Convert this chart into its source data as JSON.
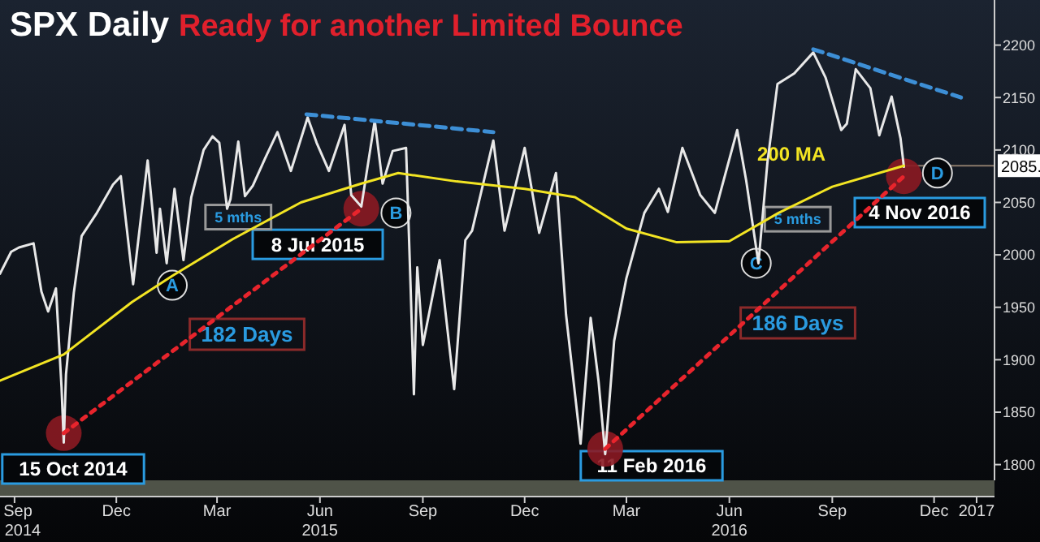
{
  "chart_data": {
    "type": "line",
    "title": "SPX Daily",
    "subtitle": "Ready for another Limited Bounce",
    "xlim": [
      "2014-08-19",
      "2017-01-24"
    ],
    "ylim": [
      1785,
      2243
    ],
    "yticks": [
      1800,
      1850,
      1900,
      1950,
      2000,
      2050,
      2100,
      2150,
      2200
    ],
    "xticks": [
      {
        "value": "2014-09-01",
        "label": "Sep\n2014"
      },
      {
        "value": "2014-12-01",
        "label": "Dec"
      },
      {
        "value": "2015-03-01",
        "label": "Mar"
      },
      {
        "value": "2015-06-01",
        "label": "Jun\n2015"
      },
      {
        "value": "2015-09-01",
        "label": "Sep"
      },
      {
        "value": "2015-12-01",
        "label": "Dec"
      },
      {
        "value": "2016-03-01",
        "label": "Mar"
      },
      {
        "value": "2016-06-01",
        "label": "Jun\n2016"
      },
      {
        "value": "2016-09-01",
        "label": "Sep"
      },
      {
        "value": "2016-12-01",
        "label": "Dec"
      },
      {
        "value": "2017-01-08",
        "label": "2017"
      }
    ],
    "grid": false,
    "series": [
      {
        "color": "#e8e8e8",
        "line_style": "solid",
        "x": [
          "2014-08-19",
          "2014-08-29",
          "2014-09-05",
          "2014-09-18",
          "2014-09-25",
          "2014-10-01",
          "2014-10-08",
          "2014-10-13",
          "2014-10-15",
          "2014-10-17",
          "2014-10-24",
          "2014-10-31",
          "2014-11-13",
          "2014-11-28",
          "2014-12-05",
          "2014-12-16",
          "2014-12-29",
          "2015-01-06",
          "2015-01-09",
          "2015-01-15",
          "2015-01-22",
          "2015-01-30",
          "2015-02-06",
          "2015-02-17",
          "2015-02-25",
          "2015-03-03",
          "2015-03-10",
          "2015-03-13",
          "2015-03-20",
          "2015-03-26",
          "2015-04-02",
          "2015-04-13",
          "2015-04-24",
          "2015-05-06",
          "2015-05-21",
          "2015-05-29",
          "2015-06-09",
          "2015-06-23",
          "2015-06-29",
          "2015-07-08",
          "2015-07-20",
          "2015-07-27",
          "2015-08-05",
          "2015-08-17",
          "2015-08-21",
          "2015-08-24",
          "2015-08-27",
          "2015-09-01",
          "2015-09-16",
          "2015-09-29",
          "2015-10-09",
          "2015-10-15",
          "2015-11-03",
          "2015-11-13",
          "2015-12-01",
          "2015-12-14",
          "2015-12-29",
          "2016-01-07",
          "2016-01-20",
          "2016-01-29",
          "2016-02-05",
          "2016-02-11",
          "2016-02-19",
          "2016-03-01",
          "2016-03-17",
          "2016-03-30",
          "2016-04-07",
          "2016-04-20",
          "2016-05-06",
          "2016-05-19",
          "2016-06-08",
          "2016-06-16",
          "2016-06-27",
          "2016-07-05",
          "2016-07-14",
          "2016-07-29",
          "2016-08-15",
          "2016-08-26",
          "2016-09-09",
          "2016-09-14",
          "2016-09-22",
          "2016-10-05",
          "2016-10-13",
          "2016-10-24",
          "2016-11-01",
          "2016-11-04"
        ],
        "values": [
          1982,
          2003,
          2007,
          2011,
          1965,
          1946,
          1968,
          1874,
          1821,
          1886,
          1964,
          2018,
          2039,
          2067,
          2075,
          1972,
          2090,
          2002,
          2044,
          1992,
          2063,
          1995,
          2055,
          2100,
          2113,
          2107,
          2044,
          2053,
          2108,
          2056,
          2066,
          2092,
          2117,
          2080,
          2131,
          2107,
          2080,
          2124,
          2057,
          2046,
          2128,
          2068,
          2099,
          2102,
          1971,
          1867,
          1988,
          1914,
          1995,
          1872,
          2014,
          2023,
          2109,
          2023,
          2102,
          2021,
          2078,
          1943,
          1820,
          1940,
          1880,
          1810,
          1918,
          1978,
          2040,
          2063,
          2041,
          2102,
          2057,
          2040,
          2119,
          2071,
          1992,
          2088,
          2163,
          2173,
          2193,
          2169,
          2119,
          2125,
          2177,
          2159,
          2114,
          2151,
          2111,
          2084
        ]
      },
      {
        "color": "#f2e423",
        "line_style": "solid",
        "x": [
          "2014-08-19",
          "2014-10-15",
          "2014-12-15",
          "2015-01-20",
          "2015-03-15",
          "2015-05-15",
          "2015-07-08",
          "2015-08-10",
          "2015-10-01",
          "2015-12-01",
          "2016-01-15",
          "2016-03-01",
          "2016-04-15",
          "2016-06-01",
          "2016-07-15",
          "2016-09-01",
          "2016-11-04"
        ],
        "values": [
          1880,
          1905,
          1955,
          1980,
          2015,
          2050,
          2068,
          2078,
          2070,
          2063,
          2055,
          2025,
          2012,
          2013,
          2040,
          2065,
          2085
        ]
      },
      {
        "type": "line",
        "color": "#e8242c",
        "line_style": "dotted",
        "x": [
          "2014-10-15",
          "2015-07-08"
        ],
        "values": [
          1830,
          2044
        ]
      },
      {
        "type": "line",
        "color": "#e8242c",
        "line_style": "dotted",
        "x": [
          "2016-02-11",
          "2016-11-04"
        ],
        "values": [
          1815,
          2075
        ]
      },
      {
        "type": "line",
        "color": "#3d8fd6",
        "line_style": "dashed",
        "x": [
          "2015-05-20",
          "2015-11-03"
        ],
        "values": [
          2134,
          2117
        ]
      },
      {
        "type": "line",
        "color": "#3d8fd6",
        "line_style": "dashed",
        "x": [
          "2016-08-15",
          "2016-12-25"
        ],
        "values": [
          2196,
          2150
        ]
      },
      {
        "type": "scatter",
        "color": "#8b1a22",
        "marker": "circle",
        "x": [
          "2014-10-15",
          "2015-07-08",
          "2016-02-11",
          "2016-11-04"
        ],
        "values": [
          1830,
          2044,
          1815,
          2075
        ]
      }
    ],
    "ref_lines": [
      {
        "axis": "y",
        "value": 2085,
        "label": "2085.",
        "color": "#8a7a6a"
      }
    ],
    "annotations": [
      "15 Oct 2014",
      {
        "text": "8 Jul 2015",
        "x": "2015-05-30",
        "y": 2010
      },
      "11 Feb 2016",
      "4 Nov 2016",
      "182 Days",
      "186 Days",
      {
        "text": "5 mths",
        "x": "2015-03-20",
        "y": 2036
      },
      {
        "text": "5 mths",
        "x": "2016-08-01",
        "y": 2034
      },
      "200 MA",
      {
        "text": "A",
        "x": "2015-01-20",
        "y": 1971
      },
      {
        "text": "B",
        "x": "2015-08-08",
        "y": 2040
      },
      {
        "text": "C",
        "x": "2016-06-25",
        "y": 1992
      },
      {
        "text": "D",
        "x": "2016-12-04",
        "y": 2078
      }
    ]
  }
}
